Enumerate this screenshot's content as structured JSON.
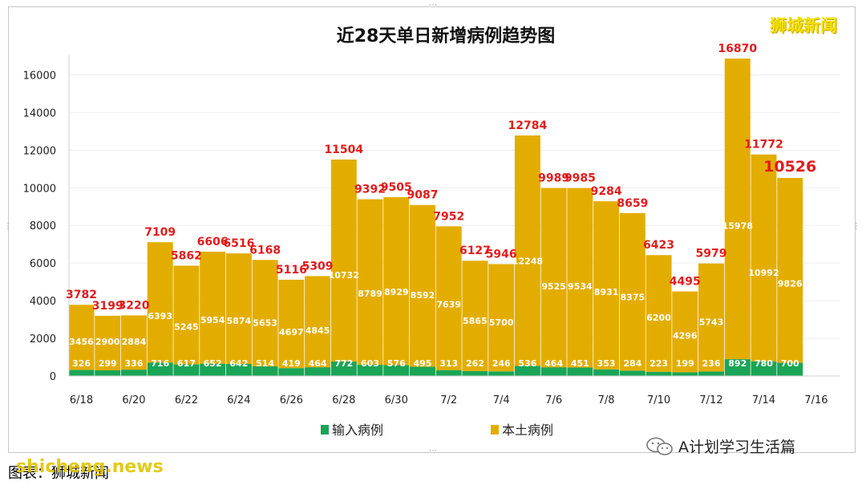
{
  "brand": "狮城新闻",
  "source_text": "图表：狮城新闻",
  "watermark_site": "shicheng.news",
  "watermark_account": "A计划学习生活篇",
  "colors": {
    "import": "#1aa556",
    "local": "#e3ad00",
    "total_label": "#e21b1b",
    "inner_label": "#ffffff"
  },
  "chart_data": {
    "type": "bar",
    "stacked": true,
    "title": "近28天单日新增病例趋势图",
    "xlabel": "",
    "ylabel": "",
    "ylim": [
      0,
      17000
    ],
    "yticks": [
      "0",
      "2000",
      "4000",
      "6000",
      "8000",
      "10000",
      "12000",
      "14000",
      "16000"
    ],
    "xtick_labels": [
      "6/18",
      "6/20",
      "6/22",
      "6/24",
      "6/26",
      "6/28",
      "6/30",
      "7/2",
      "7/4",
      "7/6",
      "7/8",
      "7/10",
      "7/12",
      "7/14",
      "7/16"
    ],
    "categories": [
      "6/18",
      "6/19",
      "6/20",
      "6/21",
      "6/22",
      "6/23",
      "6/24",
      "6/25",
      "6/26",
      "6/27",
      "6/28",
      "6/29",
      "6/30",
      "7/1",
      "7/2",
      "7/3",
      "7/4",
      "7/5",
      "7/6",
      "7/7",
      "7/8",
      "7/9",
      "7/10",
      "7/11",
      "7/12",
      "7/13",
      "7/14",
      "7/15"
    ],
    "series": [
      {
        "name": "输入病例",
        "values": [
          326,
          299,
          336,
          716,
          617,
          652,
          642,
          514,
          419,
          464,
          772,
          603,
          576,
          495,
          313,
          262,
          246,
          536,
          464,
          451,
          353,
          284,
          223,
          199,
          236,
          892,
          780,
          700
        ]
      },
      {
        "name": "本土病例",
        "values": [
          3456,
          2900,
          2884,
          6393,
          5245,
          5954,
          5874,
          5653,
          4697,
          4845,
          10732,
          8789,
          8929,
          8592,
          7639,
          5865,
          5700,
          12248,
          9525,
          9534,
          8931,
          8375,
          6200,
          4296,
          5743,
          15978,
          10992,
          9826
        ]
      }
    ],
    "totals": [
      3782,
      3199,
      3220,
      7109,
      5862,
      6606,
      6516,
      6168,
      5116,
      5309,
      11504,
      9392,
      9505,
      9087,
      7952,
      6127,
      5946,
      12784,
      9989,
      9985,
      9284,
      8659,
      6423,
      4495,
      5979,
      16870,
      11772,
      10526
    ],
    "grid": true,
    "legend_position": "bottom"
  }
}
